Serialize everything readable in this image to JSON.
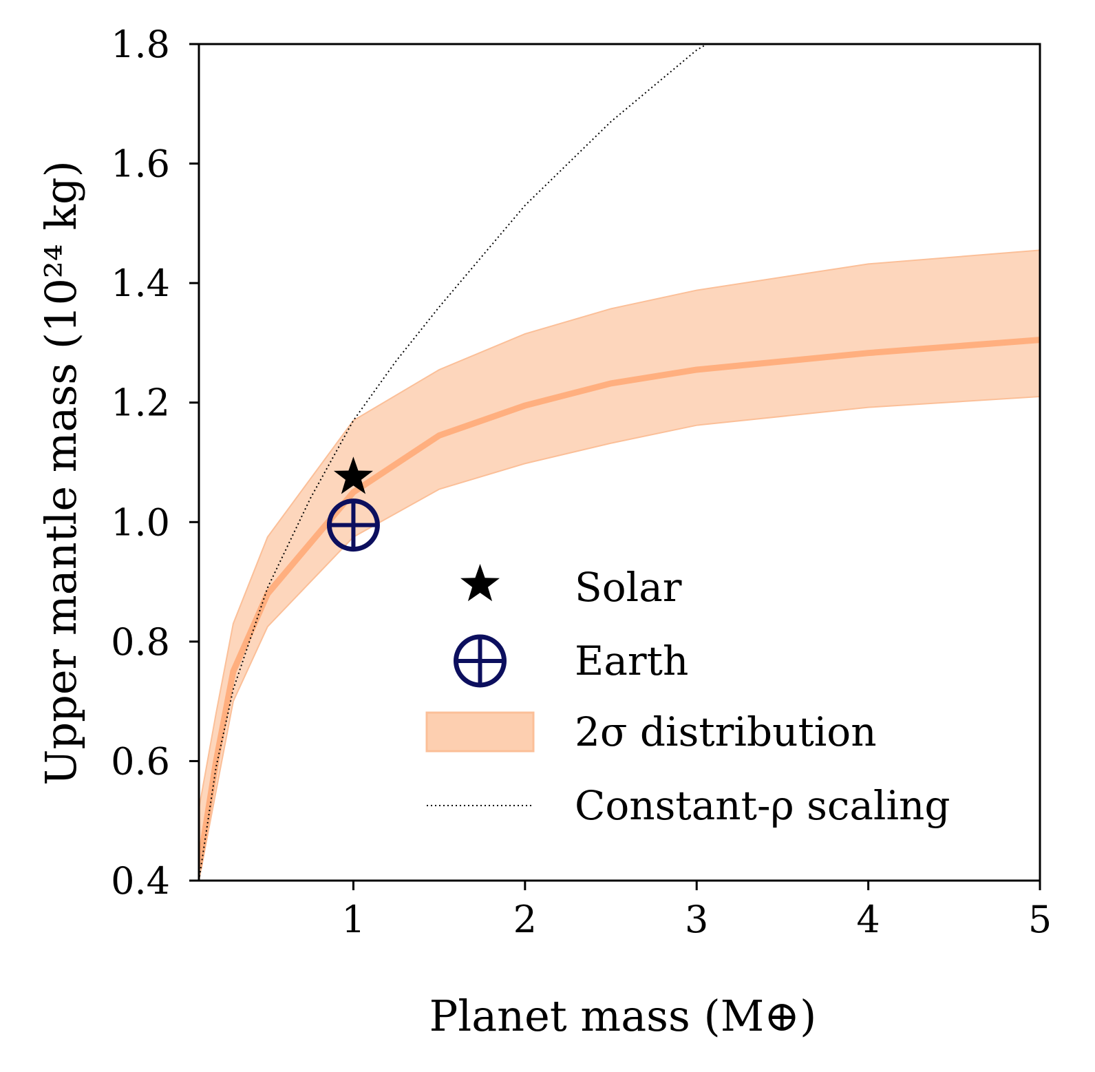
{
  "chart_data": {
    "type": "line",
    "title": "",
    "xlabel": "Planet mass (M⊕)",
    "ylabel": "Upper mantle mass (10²⁴ kg)",
    "xlim": [
      0.1,
      5
    ],
    "ylim": [
      0.4,
      1.8
    ],
    "xticks": [
      "1",
      "2",
      "3",
      "4",
      "5"
    ],
    "yticks": [
      "0.4",
      "0.6",
      "0.8",
      "1.0",
      "1.2",
      "1.4",
      "1.6",
      "1.8"
    ],
    "grid": false,
    "legend_position": "lower-right",
    "colors": {
      "median": "#ffaf7f",
      "band": "#fdcfb0",
      "band_edge": "#fbbf98",
      "earth": "#0c0f5e",
      "solar": "#000000",
      "scaling": "#000000"
    },
    "median_line": {
      "x": [
        0.1,
        0.2,
        0.3,
        0.5,
        1.0,
        1.5,
        2.0,
        2.5,
        3.0,
        4.0,
        5.0
      ],
      "y": [
        0.42,
        0.6,
        0.75,
        0.88,
        1.05,
        1.145,
        1.195,
        1.232,
        1.255,
        1.283,
        1.305
      ]
    },
    "band_2sigma": {
      "name": "2σ distribution",
      "x": [
        0.1,
        0.2,
        0.3,
        0.5,
        1.0,
        1.5,
        2.0,
        2.5,
        3.0,
        4.0,
        5.0
      ],
      "upper": [
        0.52,
        0.68,
        0.83,
        0.975,
        1.17,
        1.255,
        1.315,
        1.357,
        1.388,
        1.432,
        1.455
      ],
      "lower": [
        0.4,
        0.55,
        0.7,
        0.825,
        0.975,
        1.055,
        1.098,
        1.132,
        1.162,
        1.192,
        1.21
      ]
    },
    "constant_rho_scaling": {
      "name": "Constant-ρ scaling",
      "x": [
        0.1,
        0.2,
        0.3,
        0.5,
        0.75,
        1.0,
        1.25,
        1.5,
        2.0,
        2.5,
        3.0,
        3.06
      ],
      "y": [
        0.4,
        0.59,
        0.72,
        0.89,
        1.04,
        1.17,
        1.27,
        1.36,
        1.53,
        1.67,
        1.79,
        1.8
      ]
    },
    "points": [
      {
        "name": "Solar",
        "marker": "star",
        "x": 1.0,
        "y": 1.075
      },
      {
        "name": "Earth",
        "marker": "earth",
        "x": 1.0,
        "y": 0.995
      }
    ],
    "legend": [
      {
        "key": "solar",
        "label": "Solar"
      },
      {
        "key": "earth",
        "label": "Earth"
      },
      {
        "key": "band",
        "label": "2σ distribution"
      },
      {
        "key": "scaling",
        "label": "Constant-ρ scaling"
      }
    ]
  }
}
